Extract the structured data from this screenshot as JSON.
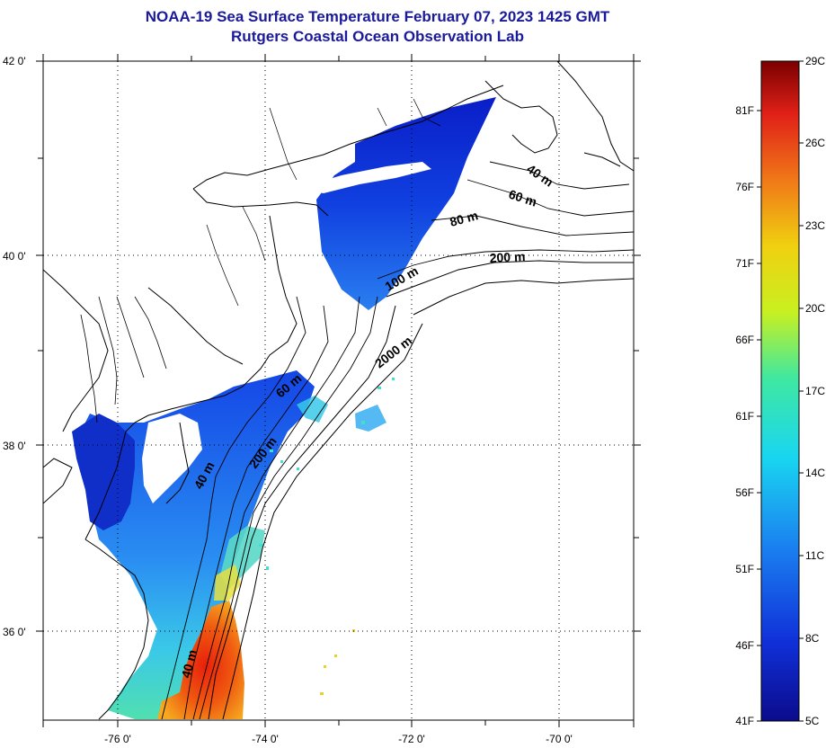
{
  "title": {
    "line1": "NOAA-19 Sea Surface Temperature February 07, 2023 1425 GMT",
    "line2": "Rutgers Coastal Ocean Observation Lab"
  },
  "axes": {
    "lat_labels": [
      "42 0'",
      "40 0'",
      "38 0'",
      "36 0'"
    ],
    "lon_labels": [
      "-76 0'",
      "-74 0'",
      "-72 0'",
      "-70 0'"
    ]
  },
  "contours": {
    "c40a": "40 m",
    "c60a": "60 m",
    "c80": "80 m",
    "c200a": "200 m",
    "c100": "100 m",
    "c2000": "2000 m",
    "c60b": "60 m",
    "c200b": "200 m",
    "c40b": "40 m",
    "c40c": "40 m"
  },
  "colorbar": {
    "fahrenheit": [
      "81F",
      "76F",
      "71F",
      "66F",
      "61F",
      "56F",
      "51F",
      "46F",
      "41F"
    ],
    "celsius": [
      "29C",
      "26C",
      "23C",
      "20C",
      "17C",
      "14C",
      "11C",
      "8C",
      "5C"
    ]
  },
  "colors": {
    "title": "#1a1a9a",
    "cold": "#0b0b8c",
    "warm": "#8b0000"
  }
}
